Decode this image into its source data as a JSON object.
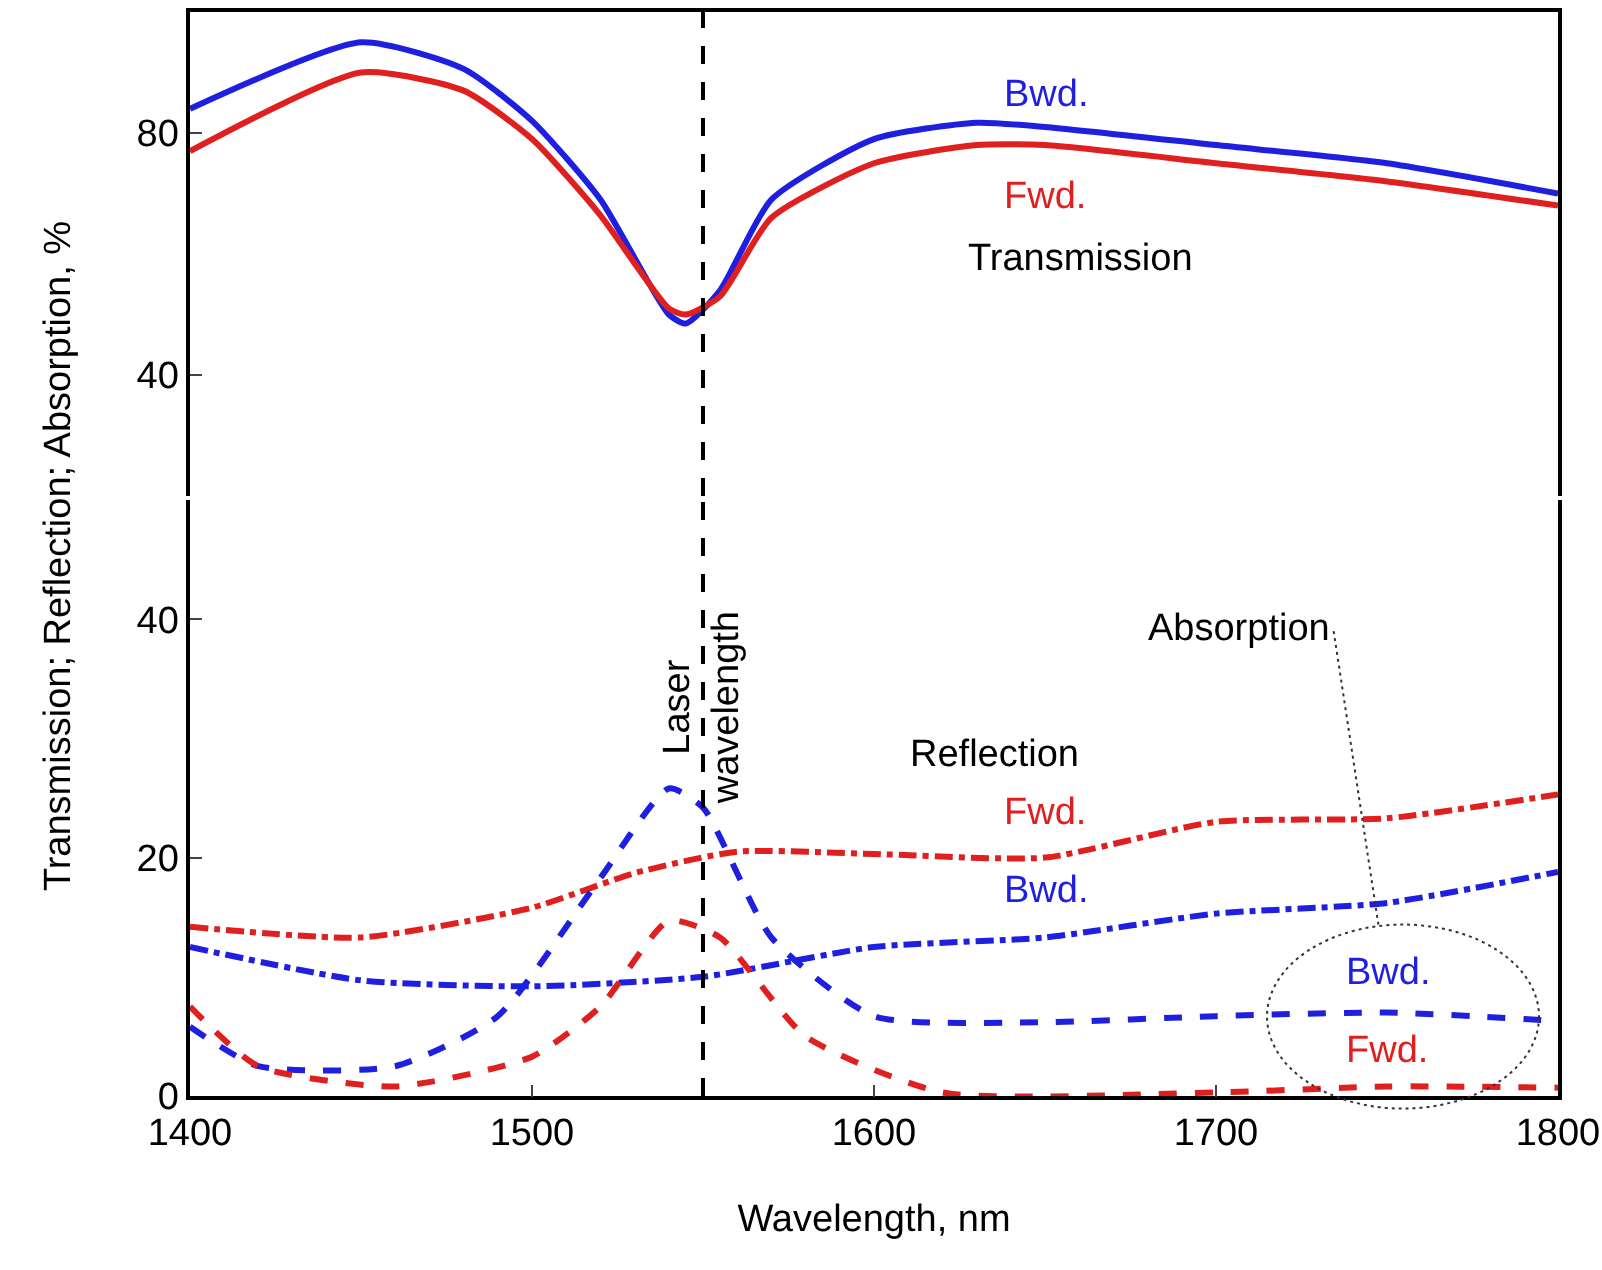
{
  "chart_data": [
    {
      "type": "line",
      "x": [
        1400,
        1450,
        1480,
        1500,
        1520,
        1540,
        1545,
        1555,
        1570,
        1600,
        1630,
        1650,
        1700,
        1750,
        1800
      ],
      "series": [
        {
          "name": "Bwd.",
          "color": "#1f1fe0",
          "values": [
            84,
            95,
            90.6,
            82,
            69,
            50,
            48.5,
            54,
            69,
            79,
            81.7,
            81,
            78,
            75,
            70
          ]
        },
        {
          "name": "Fwd.",
          "color": "#e01f1f",
          "values": [
            77,
            90,
            87,
            79,
            66.4,
            51,
            50,
            53,
            66,
            75,
            78,
            78,
            75,
            72,
            68
          ]
        }
      ],
      "xlim": [
        1400,
        1800
      ],
      "xticks": [
        1400,
        1500,
        1600,
        1700,
        1800
      ],
      "ylim": [
        20,
        100
      ],
      "yticks": [
        40,
        80
      ],
      "tick_labels": "y",
      "line_style": "solid",
      "annotations": [
        "Transmission"
      ],
      "ref_lines": [
        {
          "axis": "x",
          "value": 1550,
          "line_style": "dashed",
          "color": "#000000"
        }
      ]
    },
    {
      "type": "line",
      "xlabel": "Wavelength, nm",
      "ylabel": "Transmission; Reflection; Absorption, %",
      "xlim": [
        1400,
        1800
      ],
      "xticks": [
        1400,
        1500,
        1600,
        1700,
        1800
      ],
      "ylim": [
        0,
        50
      ],
      "yticks": [
        0,
        20,
        40
      ],
      "series": [
        {
          "name": "Fwd.",
          "color": "#e01f1f",
          "line_style": "dashdot",
          "x": [
            1400,
            1450,
            1500,
            1530,
            1560,
            1600,
            1650,
            1700,
            1750,
            1800
          ],
          "values": [
            14.2,
            13.3,
            15.8,
            18.7,
            20.5,
            20.3,
            20,
            23,
            23.3,
            25.3
          ]
        },
        {
          "name": "Bwd.",
          "color": "#1f1fe0",
          "line_style": "dashdot",
          "x": [
            1400,
            1450,
            1500,
            1550,
            1600,
            1650,
            1700,
            1750,
            1800
          ],
          "values": [
            12.5,
            9.7,
            9.2,
            10,
            12.5,
            13.3,
            15.3,
            16.2,
            18.8
          ]
        },
        {
          "name": "Bwd.",
          "color": "#1f1fe0",
          "line_style": "dashed",
          "x": [
            1400,
            1420,
            1460,
            1490,
            1520,
            1540,
            1550,
            1570,
            1600,
            1650,
            1700,
            1750,
            1800
          ],
          "values": [
            5.8,
            2.5,
            2.5,
            6.7,
            18.3,
            25.8,
            24.2,
            13.3,
            6.7,
            6.2,
            6.7,
            7,
            6.3
          ]
        },
        {
          "name": "Fwd.",
          "color": "#e01f1f",
          "line_style": "dashed",
          "x": [
            1400,
            1420,
            1460,
            1500,
            1520,
            1540,
            1555,
            1580,
            1620,
            1700,
            1750,
            1800
          ],
          "values": [
            7.5,
            2.5,
            0.8,
            3.3,
            7.5,
            14.7,
            13.3,
            5,
            0.3,
            0.3,
            0.8,
            0.7
          ]
        }
      ],
      "annotations": [
        "Reflection",
        "Absorption"
      ],
      "ref_lines": [
        {
          "axis": "x",
          "value": 1550,
          "label": "Laser wavelength",
          "line_style": "dashed",
          "color": "#000000"
        }
      ]
    }
  ]
}
